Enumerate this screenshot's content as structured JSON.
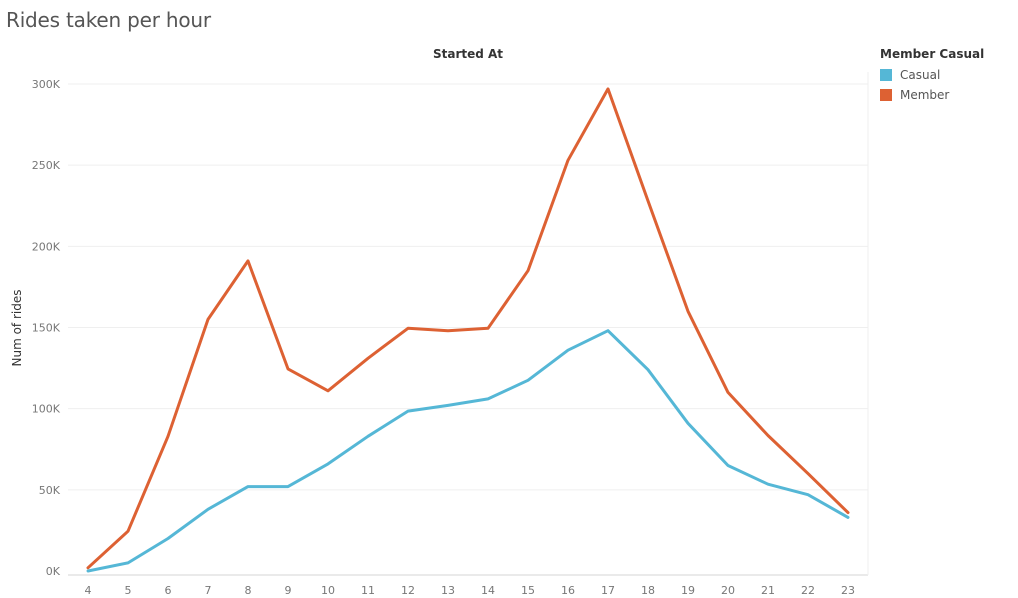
{
  "page": {
    "title": "Rides taken per hour"
  },
  "colors": {
    "casual": "#55b7d6",
    "member": "#dd6133",
    "grid": "#efefef",
    "axis": "#d6d6d6",
    "tick_text": "#777777"
  },
  "legend": {
    "title": "Member Casual",
    "items": [
      {
        "label": "Casual",
        "color": "#55b7d6"
      },
      {
        "label": "Member",
        "color": "#dd6133"
      }
    ]
  },
  "chart_data": {
    "type": "line",
    "title": "Started At",
    "xlabel": "",
    "ylabel": "Num of rides",
    "x": [
      4,
      5,
      6,
      7,
      8,
      9,
      10,
      11,
      12,
      13,
      14,
      15,
      16,
      17,
      18,
      19,
      20,
      21,
      22,
      23
    ],
    "ylim": [
      0,
      300000
    ],
    "yticks": [
      0,
      50000,
      100000,
      150000,
      200000,
      250000,
      300000
    ],
    "ytick_labels": [
      "0K",
      "50K",
      "100K",
      "150K",
      "200K",
      "250K",
      "300K"
    ],
    "grid": true,
    "legend_position": "top-right",
    "series": [
      {
        "name": "Casual",
        "color": "#55b7d6",
        "values": [
          0,
          5000,
          20000,
          38000,
          52000,
          52000,
          66000,
          83000,
          98500,
          102000,
          106000,
          117500,
          136000,
          148000,
          124000,
          91000,
          65000,
          53500,
          47000,
          33000
        ]
      },
      {
        "name": "Member",
        "color": "#dd6133",
        "values": [
          2000,
          24500,
          83000,
          155000,
          191000,
          124500,
          111000,
          131000,
          149500,
          148000,
          149500,
          185000,
          253000,
          297000,
          228000,
          160000,
          110000,
          83500,
          60000,
          36000
        ]
      }
    ]
  }
}
